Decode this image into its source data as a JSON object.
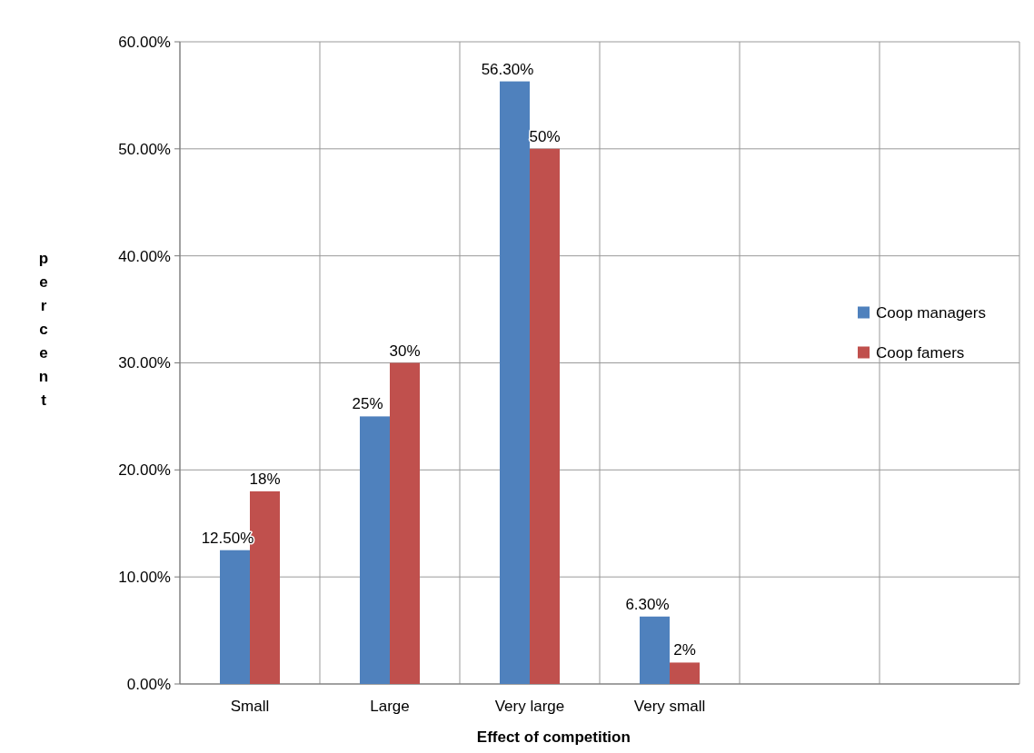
{
  "chart_data": {
    "type": "bar",
    "xlabel": "Effect of competition",
    "ylabel": "percent",
    "categories": [
      "Small",
      "Large",
      "Very large",
      "Very small",
      null,
      null
    ],
    "series": [
      {
        "name": "Coop managers",
        "color": "#4f81bd",
        "values": [
          12.5,
          25,
          56.3,
          6.3,
          null,
          null
        ],
        "value_labels": [
          "12.50%",
          "25%",
          "56.30%",
          "6.30%",
          null,
          null
        ]
      },
      {
        "name": "Coop famers",
        "color": "#c0504d",
        "values": [
          18,
          30,
          50,
          2,
          null,
          null
        ],
        "value_labels": [
          "18%",
          "30%",
          "50%",
          "2%",
          null,
          null
        ]
      }
    ],
    "ylim": [
      0,
      60
    ],
    "yticks": [
      {
        "value": 0,
        "label": "0.00%"
      },
      {
        "value": 10,
        "label": "10.00%"
      },
      {
        "value": 20,
        "label": "20.00%"
      },
      {
        "value": 30,
        "label": "30.00%"
      },
      {
        "value": 40,
        "label": "40.00%"
      },
      {
        "value": 50,
        "label": "50.00%"
      },
      {
        "value": 60,
        "label": "60.00%"
      }
    ],
    "grid": true,
    "legend": "right"
  }
}
